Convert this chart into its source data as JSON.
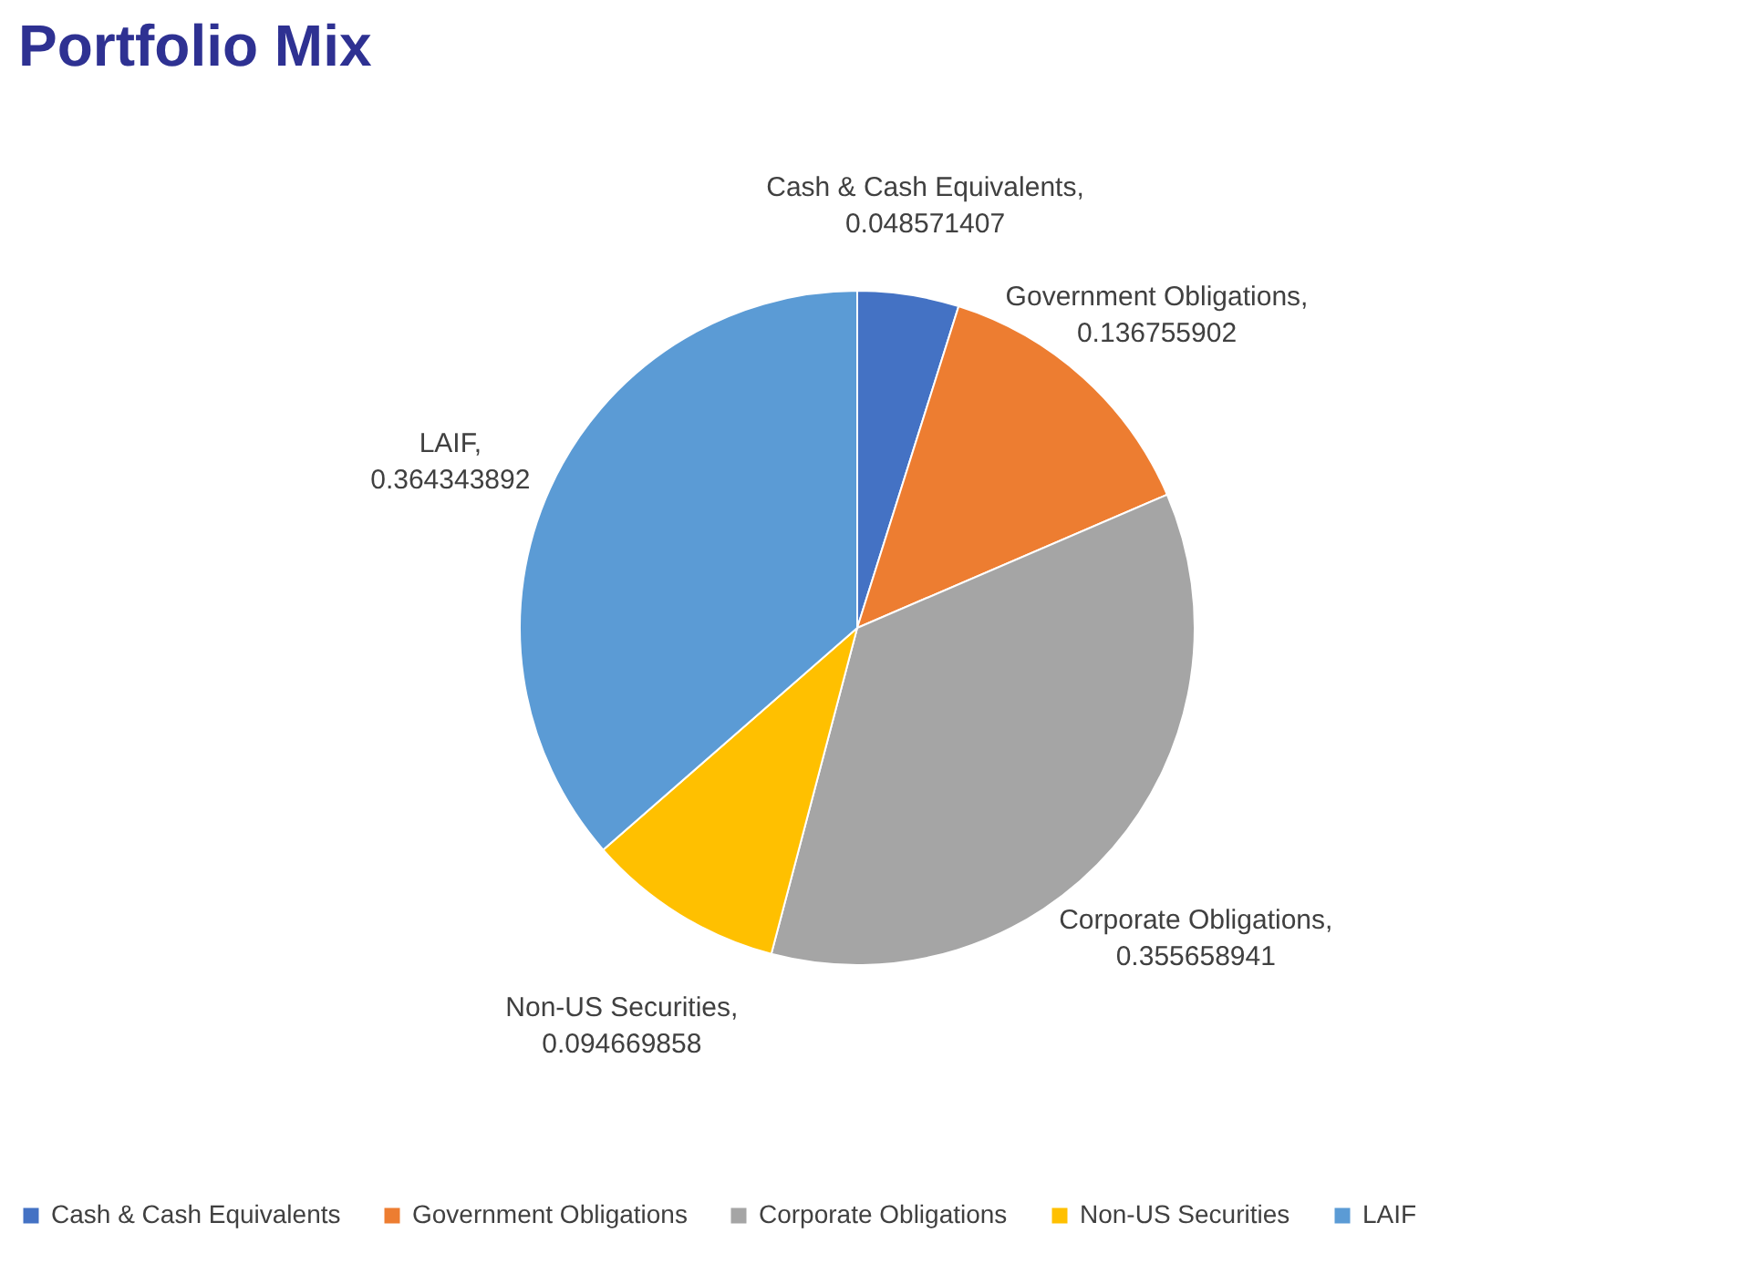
{
  "chart_data": {
    "type": "pie",
    "title": "Portfolio Mix",
    "categories": [
      "Cash & Cash Equivalents",
      "Government Obligations",
      "Corporate Obligations",
      "Non-US Securities",
      "LAIF"
    ],
    "values": [
      0.048571407,
      0.136755902,
      0.355658941,
      0.094669858,
      0.364343892
    ],
    "colors": [
      "#4472c4",
      "#ed7d31",
      "#a5a5a5",
      "#ffc000",
      "#5b9bd5"
    ],
    "value_labels": [
      "Cash & Cash Equivalents, 0.048571407",
      "Government Obligations, 0.136755902",
      "Corporate Obligations, 0.355658941",
      "Non-US Securities, 0.094669858",
      "LAIF, 0.364343892"
    ],
    "legend": "bottom"
  }
}
